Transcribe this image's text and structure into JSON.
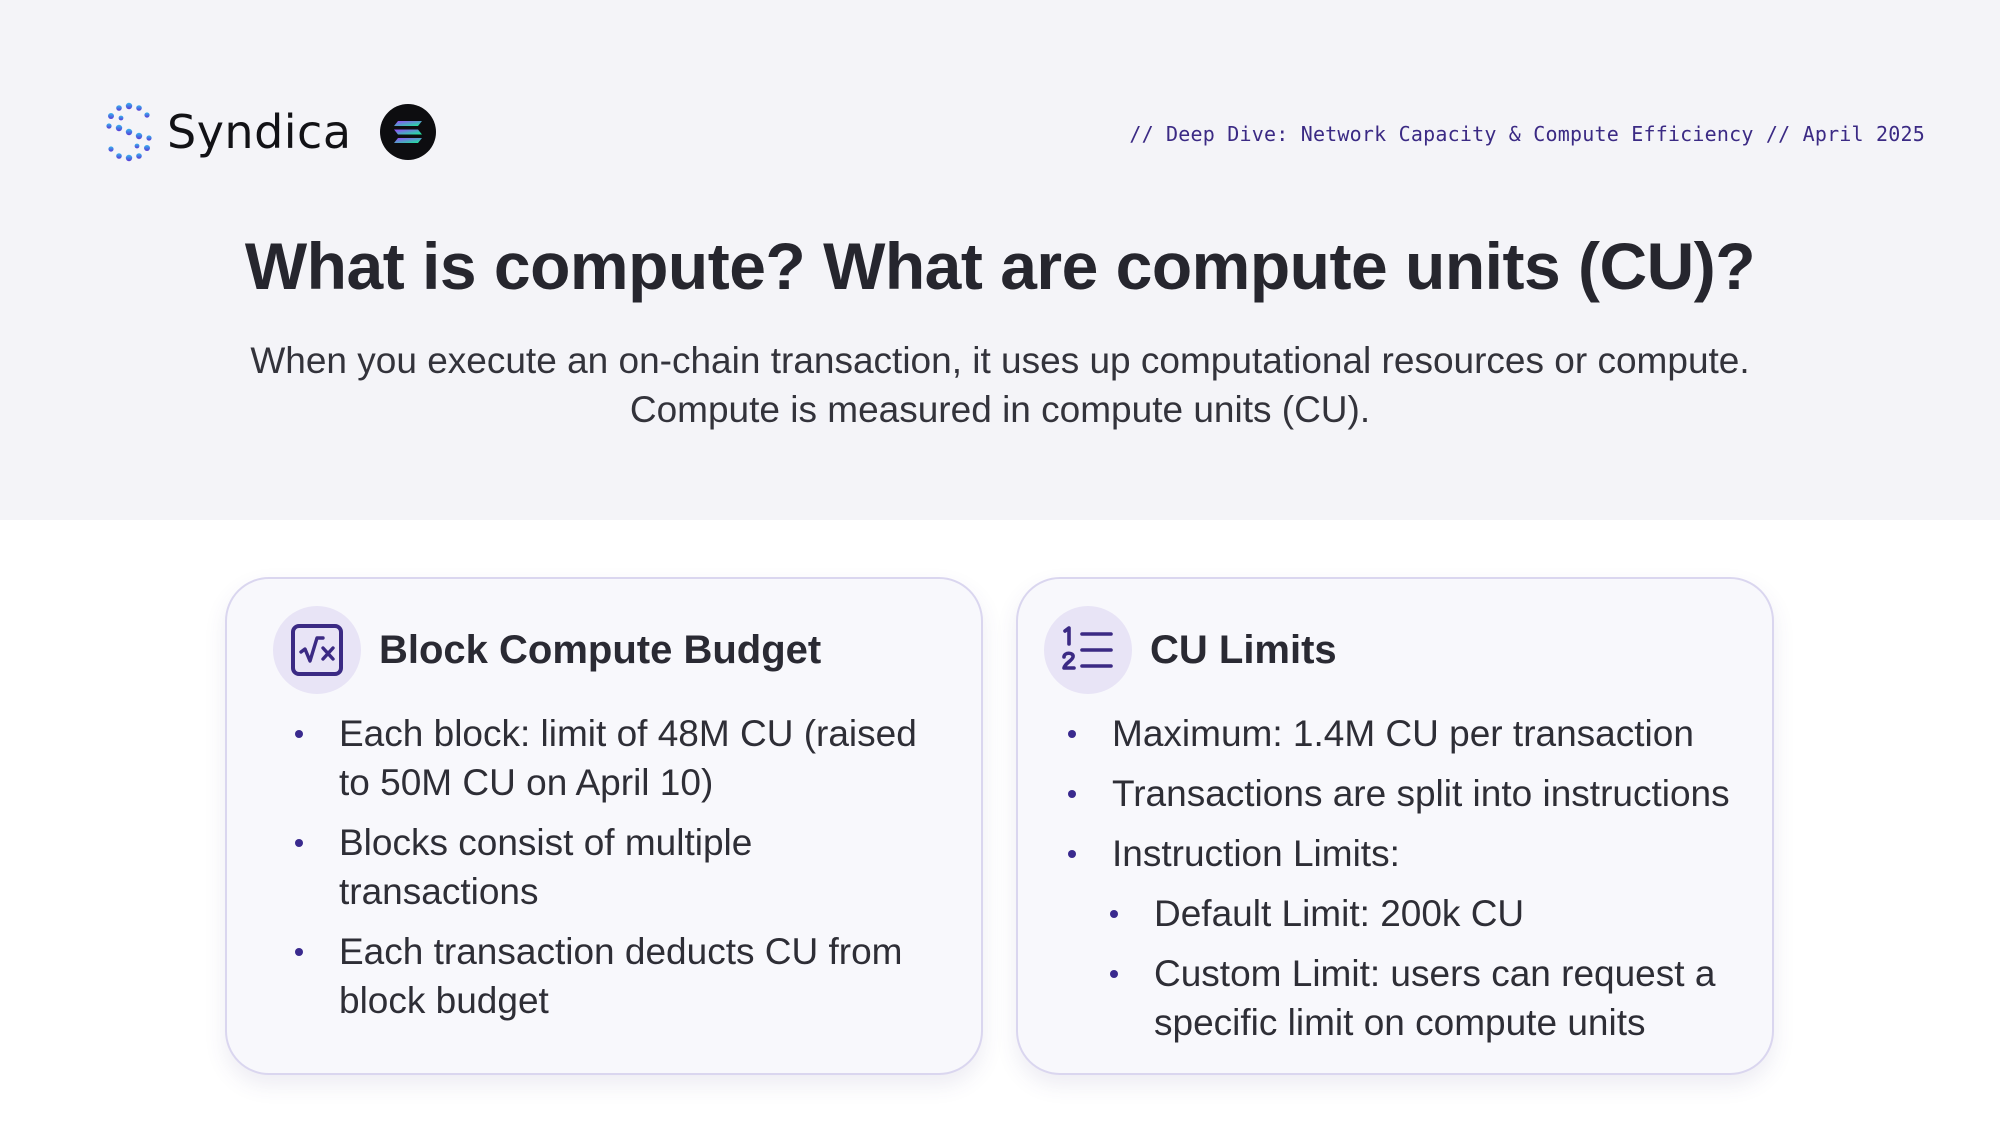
{
  "header": {
    "brand_name": "Syndica",
    "logo_icon": "syndica-logo-icon",
    "partner_icon": "solana-logo-icon",
    "tagline": "// Deep Dive: Network Capacity & Compute Efficiency // April 2025"
  },
  "hero": {
    "title": "What is compute? What are compute units (CU)?",
    "subtitle_line1": "When you execute an on-chain transaction, it uses up computational resources or compute.",
    "subtitle_line2": "Compute is measured in compute units (CU)."
  },
  "cards": [
    {
      "title": "Block Compute Budget",
      "icon": "square-root-icon",
      "bullets": [
        "Each block: limit of 48M CU (raised to 50M CU on April 10)",
        "Blocks consist of multiple transactions",
        "Each transaction deducts CU from block budget"
      ]
    },
    {
      "title": "CU Limits",
      "icon": "numbered-list-icon",
      "bullets": [
        "Maximum: 1.4M CU per transaction",
        "Transactions are split into instructions",
        "Instruction Limits:"
      ],
      "sub_bullets": [
        "Default Limit: 200k CU",
        "Custom Limit: users can request a specific limit on compute units"
      ]
    }
  ],
  "colors": {
    "accent": "#3b2a84",
    "band_background": "#f4f4f8",
    "card_background": "#f8f8fc",
    "card_border": "#dad6ef",
    "icon_circle": "#e8e4f6",
    "headline": "#26262e"
  }
}
